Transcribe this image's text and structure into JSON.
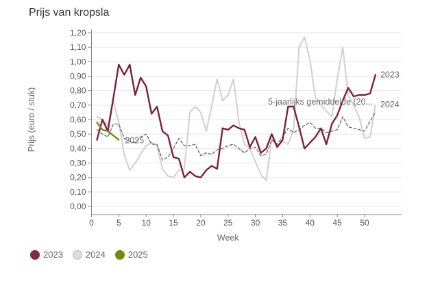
{
  "chart_data": {
    "type": "line",
    "title": "Prijs van kropsla",
    "xlabel": "Week",
    "ylabel": "Prijs (euro / stuk)",
    "xlim": [
      0,
      57
    ],
    "ylim": [
      0,
      1.2
    ],
    "xticks": [
      0,
      5,
      10,
      15,
      20,
      25,
      30,
      35,
      40,
      45,
      50
    ],
    "yticks": [
      0,
      0.1,
      0.2,
      0.3,
      0.4,
      0.5,
      0.6,
      0.7,
      0.8,
      0.9,
      1.0,
      1.1,
      1.2
    ],
    "ytick_labels": [
      "0,00",
      "0,10",
      "0,20",
      "0,30",
      "0,40",
      "0,50",
      "0,60",
      "0,70",
      "0,80",
      "0,90",
      "1,00",
      "1,10",
      "1,20"
    ],
    "grid": true,
    "legend_position": "bottom-left",
    "series": [
      {
        "name": "2024",
        "color": "#d3d3d3",
        "dashed": false,
        "end_label": "2024",
        "x": [
          1,
          2,
          3,
          4,
          5,
          6,
          7,
          8,
          9,
          10,
          11,
          12,
          13,
          14,
          15,
          16,
          17,
          18,
          19,
          20,
          21,
          22,
          23,
          24,
          25,
          26,
          27,
          28,
          29,
          30,
          31,
          32,
          33,
          34,
          35,
          36,
          37,
          38,
          39,
          40,
          41,
          42,
          43,
          44,
          45,
          46,
          47,
          48,
          49,
          50,
          51,
          52
        ],
        "values": [
          0.62,
          0.6,
          0.56,
          0.73,
          0.58,
          0.36,
          0.25,
          0.3,
          0.36,
          0.42,
          0.44,
          0.42,
          0.26,
          0.21,
          0.2,
          0.25,
          0.26,
          0.65,
          0.69,
          0.65,
          0.52,
          0.69,
          0.88,
          0.73,
          0.77,
          0.88,
          0.58,
          0.43,
          0.4,
          0.31,
          0.22,
          0.18,
          0.47,
          0.41,
          0.45,
          0.43,
          0.53,
          1.1,
          1.17,
          1.01,
          0.75,
          0.7,
          0.66,
          0.62,
          0.88,
          1.1,
          0.77,
          0.7,
          0.62,
          0.47,
          0.48,
          0.7
        ]
      },
      {
        "name": "5-jaarlijks gemiddelde (20...",
        "color": "#666666",
        "dashed": true,
        "end_label": "5-jaarlijks gemiddelde (20...",
        "x": [
          1,
          2,
          3,
          4,
          5,
          6,
          7,
          8,
          9,
          10,
          11,
          12,
          13,
          14,
          15,
          16,
          17,
          18,
          19,
          20,
          21,
          22,
          23,
          24,
          25,
          26,
          27,
          28,
          29,
          30,
          31,
          32,
          33,
          34,
          35,
          36,
          37,
          38,
          39,
          40,
          41,
          42,
          43,
          44,
          45,
          46,
          47,
          48,
          49,
          50,
          51,
          52
        ],
        "values": [
          0.53,
          0.5,
          0.48,
          0.57,
          0.57,
          0.47,
          0.45,
          0.44,
          0.48,
          0.5,
          0.43,
          0.43,
          0.32,
          0.34,
          0.4,
          0.47,
          0.42,
          0.42,
          0.43,
          0.35,
          0.37,
          0.36,
          0.39,
          0.4,
          0.42,
          0.43,
          0.4,
          0.37,
          0.4,
          0.41,
          0.35,
          0.36,
          0.46,
          0.43,
          0.48,
          0.54,
          0.51,
          0.53,
          0.56,
          0.58,
          0.54,
          0.54,
          0.51,
          0.52,
          0.53,
          0.62,
          0.55,
          0.54,
          0.53,
          0.52,
          0.59,
          0.65
        ]
      },
      {
        "name": "2023",
        "color": "#7d1f3a",
        "dashed": false,
        "end_label": "2023",
        "x": [
          1,
          2,
          3,
          4,
          5,
          6,
          7,
          8,
          9,
          10,
          11,
          12,
          13,
          14,
          15,
          16,
          17,
          18,
          19,
          20,
          21,
          22,
          23,
          24,
          25,
          26,
          27,
          28,
          29,
          30,
          31,
          32,
          33,
          34,
          35,
          36,
          37,
          38,
          39,
          40,
          41,
          42,
          43,
          44,
          45,
          46,
          47,
          48,
          49,
          50,
          51,
          52
        ],
        "values": [
          0.46,
          0.6,
          0.52,
          0.75,
          0.98,
          0.91,
          0.98,
          0.77,
          0.89,
          0.83,
          0.64,
          0.69,
          0.52,
          0.49,
          0.34,
          0.33,
          0.2,
          0.24,
          0.21,
          0.2,
          0.25,
          0.28,
          0.26,
          0.54,
          0.53,
          0.56,
          0.54,
          0.53,
          0.41,
          0.48,
          0.37,
          0.4,
          0.5,
          0.41,
          0.46,
          0.69,
          0.69,
          0.55,
          0.4,
          0.44,
          0.48,
          0.54,
          0.43,
          0.57,
          0.63,
          0.73,
          0.82,
          0.76,
          0.77,
          0.77,
          0.78,
          0.91
        ]
      },
      {
        "name": "2025",
        "color": "#6b8e0e",
        "dashed": false,
        "end_label": "2025",
        "x": [
          1,
          2,
          3,
          4,
          5
        ],
        "values": [
          0.58,
          0.53,
          0.52,
          0.49,
          0.46
        ]
      }
    ]
  },
  "legend": {
    "items": [
      {
        "label": "2023",
        "color": "#862a41",
        "border": "#862a41"
      },
      {
        "label": "2024",
        "color": "#dcdcdc",
        "border": "#bdbdbd"
      },
      {
        "label": "2025",
        "color": "#6b8e0e",
        "border": "#6b8e0e"
      }
    ]
  }
}
